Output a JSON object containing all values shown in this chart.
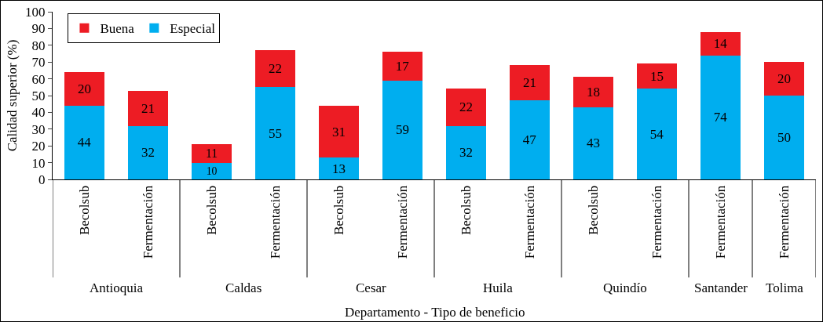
{
  "chart_data": {
    "type": "bar",
    "stacked": true,
    "xlabel": "Departamento - Tipo de beneficio",
    "ylabel": "Calidad superior (%)",
    "categories": [
      "Becolsub",
      "Fermentación",
      "Becolsub",
      "Fermentación",
      "Becolsub",
      "Fermentación",
      "Becolsub",
      "Fermentación",
      "Becolsub",
      "Fermentación",
      "Fermentación",
      "Fermentación"
    ],
    "series": [
      {
        "name": "Especial",
        "color": "#00aeef",
        "values": [
          44,
          32,
          10,
          55,
          13,
          59,
          32,
          47,
          43,
          54,
          74,
          50
        ]
      },
      {
        "name": "Buena",
        "color": "#ed1c24",
        "values": [
          20,
          21,
          11,
          22,
          31,
          17,
          22,
          21,
          18,
          15,
          14,
          20
        ]
      }
    ],
    "annotations": [
      "Antioquia",
      "Caldas",
      "Cesar",
      "Huila",
      "Quindío",
      "Santander",
      "Tolima"
    ],
    "ylim": [
      0,
      100
    ],
    "yticks": [
      0,
      10,
      20,
      30,
      40,
      50,
      60,
      70,
      80,
      90,
      100
    ],
    "grid": false,
    "legend": "top left",
    "data_labels": true
  }
}
